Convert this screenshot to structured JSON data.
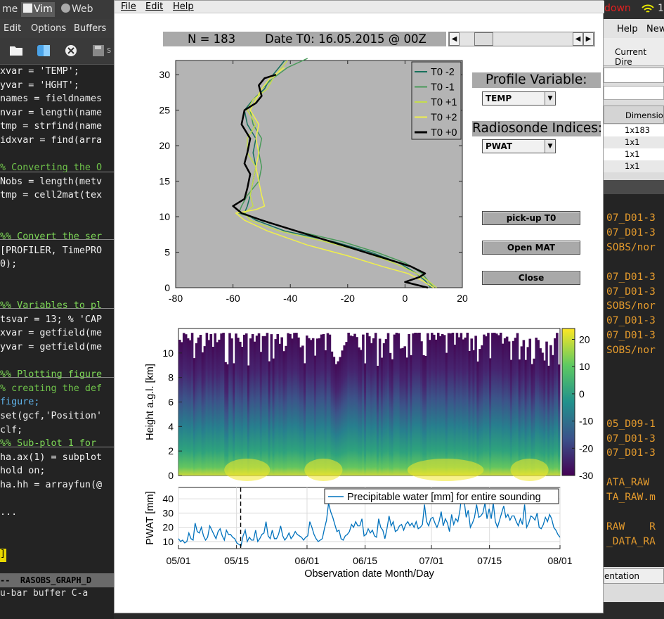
{
  "editor": {
    "tabs": [
      "me",
      "Vim",
      "Web"
    ],
    "menu": [
      "Edit",
      "Options",
      "Buffers"
    ],
    "toolbar_icons": [
      "folder-icon",
      "finder-icon",
      "close-circle-icon",
      "save-icon"
    ],
    "toolbar_trailing": "s",
    "code_lines": [
      {
        "text": "xvar = 'TEMP';",
        "color": "#f0f0f0"
      },
      {
        "text": "yvar = 'HGHT';",
        "color": "#f0f0f0"
      },
      {
        "text": "names = fieldnames",
        "color": "#f0f0f0"
      },
      {
        "text": "nvar = length(name",
        "color": "#f0f0f0"
      },
      {
        "text": "tmp = strfind(name",
        "color": "#f0f0f0"
      },
      {
        "text": "idxvar = find(arra",
        "color": "#f0f0f0"
      },
      {
        "text": "",
        "color": "#f0f0f0"
      },
      {
        "text": "% Converting the O",
        "color": "#6fc24a"
      },
      {
        "text": "Nobs = length(metv",
        "color": "#f0f0f0"
      },
      {
        "text": "tmp = cell2mat(tex",
        "color": "#f0f0f0"
      },
      {
        "text": "",
        "color": "#f0f0f0"
      },
      {
        "text": "",
        "color": "#f0f0f0"
      },
      {
        "text": "%% Convert the ser",
        "color": "#7ed957"
      },
      {
        "text": "[PROFILER, TimePRO",
        "color": "#f0f0f0"
      },
      {
        "text": "0);",
        "color": "#f0f0f0"
      },
      {
        "text": "",
        "color": "#f0f0f0"
      },
      {
        "text": "",
        "color": "#f0f0f0"
      },
      {
        "text": "%% Variables to pl",
        "color": "#7ed957"
      },
      {
        "text": "tsvar = 13; % 'CAP",
        "color": "#f0f0f0"
      },
      {
        "text": "xvar = getfield(me",
        "color": "#f0f0f0"
      },
      {
        "text": "yvar = getfield(me",
        "color": "#f0f0f0"
      },
      {
        "text": "",
        "color": "#f0f0f0"
      },
      {
        "text": "%% Plotting figure",
        "color": "#7ed957"
      },
      {
        "text": "% creating the def",
        "color": "#6fc24a"
      },
      {
        "text": "figure;",
        "color": "#5fb2e8"
      },
      {
        "text": "set(gcf,'Position'",
        "color": "#f0f0f0"
      },
      {
        "text": "clf;",
        "color": "#f0f0f0"
      },
      {
        "text": "%% Sub-plot 1 for",
        "color": "#7ed957"
      },
      {
        "text": "ha.ax(1) = subplot",
        "color": "#f0f0f0"
      },
      {
        "text": "hold on;",
        "color": "#f0f0f0"
      },
      {
        "text": "ha.hh = arrayfun(@",
        "color": "#f0f0f0"
      },
      {
        "text": "",
        "color": "#f0f0f0"
      },
      {
        "text": "...",
        "color": "#f0f0f0"
      },
      {
        "text": "",
        "color": "#f0f0f0"
      },
      {
        "text": "",
        "color": "#f0f0f0"
      },
      {
        "text": "]",
        "color": "#f0f0f0"
      }
    ],
    "status_line": "--  RASOBS_GRAPH_D",
    "message_line": "u-bar buffer C-a"
  },
  "system": {
    "down_label": "down",
    "wifi_trailing": "1"
  },
  "right_app": {
    "menu": [
      "Help",
      "New"
    ],
    "current_dir_label": "Current Dire",
    "table_header": "Dimension",
    "table_rows": [
      "1x183",
      "1x1",
      "1x1",
      "1x1"
    ],
    "code_lines": [
      "07_D01-3",
      "07_D01-3",
      "SOBS/nor",
      "",
      "07_D01-3",
      "07_D01-3",
      "SOBS/nor",
      "07_D01-3",
      "07_D01-3",
      "SOBS/nor",
      "",
      "",
      "",
      "",
      "05_D09-1",
      "07_D01-3",
      "07_D01-3",
      "",
      "ATA_RAW",
      "TA_RAW.m",
      "",
      "RAW    R",
      "_DATA_RA"
    ],
    "tab_button": "entation"
  },
  "figure": {
    "menu": [
      "File",
      "Edit",
      "Help"
    ],
    "header": {
      "n_label": "N = 183",
      "date_label": "Date T0: 16.05.2015 @ 00Z"
    },
    "profile_variable": {
      "label": "Profile Variable:",
      "selected": "TEMP"
    },
    "radiosonde_indices": {
      "label": "Radiosonde Indices:",
      "selected": "PWAT"
    },
    "buttons": {
      "pickup": "pick-up T0",
      "open_mat": "Open MAT",
      "close": "Close"
    }
  },
  "chart_data": [
    {
      "type": "line",
      "title": "",
      "xlabel": "",
      "ylabel": "",
      "xlim": [
        -80,
        20
      ],
      "ylim": [
        0,
        32
      ],
      "xticks": [
        -80,
        -60,
        -40,
        -20,
        0,
        20
      ],
      "yticks": [
        0,
        5,
        10,
        15,
        20,
        25,
        30
      ],
      "background": "#b4b4b4",
      "grid": false,
      "legend": "top-right",
      "series": [
        {
          "name": "T0 -2",
          "color": "#17705c",
          "width": 1.5,
          "points": [
            [
              9,
              0
            ],
            [
              7,
              1
            ],
            [
              4,
              2
            ],
            [
              -2,
              3.5
            ],
            [
              -12,
              5
            ],
            [
              -25,
              6.5
            ],
            [
              -42,
              8
            ],
            [
              -52,
              9.5
            ],
            [
              -56,
              10.5
            ],
            [
              -55,
              11.5
            ],
            [
              -54,
              13
            ],
            [
              -53,
              15
            ],
            [
              -52,
              17
            ],
            [
              -53,
              19
            ],
            [
              -52,
              21
            ],
            [
              -55,
              23
            ],
            [
              -56,
              25
            ],
            [
              -53,
              26.5
            ],
            [
              -49,
              28
            ],
            [
              -47,
              29.5
            ],
            [
              -44,
              31
            ],
            [
              -42,
              32
            ]
          ]
        },
        {
          "name": "T0 -1",
          "color": "#4a9a5a",
          "width": 1.5,
          "points": [
            [
              10,
              0
            ],
            [
              8,
              1
            ],
            [
              6,
              2
            ],
            [
              0,
              3.5
            ],
            [
              -10,
              5
            ],
            [
              -22,
              6.5
            ],
            [
              -38,
              8
            ],
            [
              -50,
              9.5
            ],
            [
              -58,
              10.5
            ],
            [
              -57,
              11.5
            ],
            [
              -55,
              13
            ],
            [
              -51,
              15
            ],
            [
              -50,
              17
            ],
            [
              -51,
              19
            ],
            [
              -50,
              21
            ],
            [
              -53,
              23
            ],
            [
              -54,
              25
            ],
            [
              -52,
              26.5
            ],
            [
              -50,
              28
            ],
            [
              -46,
              29.5
            ],
            [
              -41,
              31
            ],
            [
              -34,
              32.3
            ]
          ]
        },
        {
          "name": "T0 +1",
          "color": "#c4dc4e",
          "width": 1.5,
          "points": [
            [
              11,
              0
            ],
            [
              8,
              1
            ],
            [
              4,
              2
            ],
            [
              -4,
              3.5
            ],
            [
              -14,
              5
            ],
            [
              -28,
              6.5
            ],
            [
              -44,
              8
            ],
            [
              -54,
              9.5
            ],
            [
              -56,
              10.5
            ],
            [
              -53,
              11.5
            ],
            [
              -54,
              13
            ],
            [
              -53,
              15
            ],
            [
              -52,
              17
            ],
            [
              -55,
              19
            ],
            [
              -55,
              21
            ],
            [
              -52,
              23
            ],
            [
              -55,
              25
            ],
            [
              -53,
              26.5
            ],
            [
              -48,
              28
            ],
            [
              -46,
              29.5
            ],
            [
              -43,
              31
            ],
            [
              -41,
              32
            ]
          ]
        },
        {
          "name": "T0 +2",
          "color": "#f0f04a",
          "width": 1.5,
          "points": [
            [
              10,
              0
            ],
            [
              6,
              1
            ],
            [
              1,
              2
            ],
            [
              -8,
              3
            ],
            [
              -20,
              4.5
            ],
            [
              -34,
              6
            ],
            [
              -48,
              8
            ],
            [
              -56,
              9.5
            ],
            [
              -59,
              10.5
            ],
            [
              -52,
              11
            ],
            [
              -49,
              11.5
            ],
            [
              -50,
              13
            ],
            [
              -51,
              15
            ],
            [
              -52,
              17
            ],
            [
              -51,
              19
            ],
            [
              -52,
              21
            ],
            [
              -51,
              23
            ],
            [
              -54,
              25
            ],
            [
              -52,
              26.5
            ],
            [
              -50,
              28
            ],
            [
              -47,
              29.5
            ],
            [
              -42,
              31
            ]
          ]
        },
        {
          "name": "T0 +0",
          "color": "#000000",
          "width": 2.5,
          "points": [
            [
              8,
              0
            ],
            [
              0,
              0.8
            ],
            [
              5,
              1.5
            ],
            [
              7,
              2
            ],
            [
              2,
              3
            ],
            [
              -10,
              4.5
            ],
            [
              -22,
              6
            ],
            [
              -38,
              8
            ],
            [
              -50,
              9.5
            ],
            [
              -57,
              10.5
            ],
            [
              -60,
              11.5
            ],
            [
              -56,
              12.5
            ],
            [
              -55,
              14
            ],
            [
              -54,
              16
            ],
            [
              -56,
              17.5
            ],
            [
              -55,
              19
            ],
            [
              -54,
              21
            ],
            [
              -57,
              23
            ],
            [
              -56,
              25
            ],
            [
              -52,
              26
            ],
            [
              -50,
              27
            ],
            [
              -51,
              28.5
            ],
            [
              -49,
              29.5
            ],
            [
              -45,
              30
            ]
          ]
        }
      ]
    },
    {
      "type": "heatmap",
      "xlabel": "",
      "ylabel": "Height a.g.l. [km]",
      "ylim": [
        0,
        12
      ],
      "yticks": [
        0,
        2,
        4,
        6,
        8,
        10
      ],
      "colorbar": {
        "min": -30,
        "max": 24,
        "ticks": [
          20,
          10,
          0,
          -10,
          -20,
          -30
        ],
        "colors": [
          "#440154",
          "#3b528b",
          "#21918c",
          "#5ec962",
          "#fde725"
        ]
      }
    },
    {
      "type": "line",
      "xlabel": "Observation date Month/Day",
      "ylabel": "PWAT [mm]",
      "x_tick_labels": [
        "05/01",
        "05/15",
        "06/01",
        "06/15",
        "07/01",
        "07/15",
        "08/01"
      ],
      "xlim": [
        0,
        92
      ],
      "ylim": [
        5,
        48
      ],
      "yticks": [
        10,
        20,
        30,
        40
      ],
      "grid": true,
      "marker_day": 15,
      "series": [
        {
          "name": "Precipitable water [mm] for entire sounding",
          "color": "#0072bd",
          "values": [
            12,
            10,
            11,
            9,
            10,
            16,
            12,
            11,
            23,
            17,
            16,
            20,
            14,
            11,
            13,
            21,
            18,
            15,
            12,
            17,
            19,
            14,
            11,
            18,
            15,
            15,
            13,
            12,
            9,
            8,
            7,
            14,
            18,
            10,
            13,
            11,
            11,
            18,
            10,
            12,
            15,
            16,
            24,
            14,
            12,
            18,
            12,
            12,
            15,
            21,
            14,
            11,
            13,
            16,
            12,
            14,
            17,
            15,
            14,
            13,
            11,
            13,
            14,
            24,
            20,
            15,
            12,
            10,
            11,
            12,
            19,
            25,
            37,
            31,
            27,
            22,
            17,
            18,
            12,
            11,
            14,
            15,
            17,
            22,
            20,
            24,
            21,
            21,
            26,
            14,
            15,
            19,
            16,
            18,
            14,
            13,
            26,
            20,
            18,
            12,
            19,
            28,
            21,
            24,
            17,
            18,
            21,
            22,
            18,
            22,
            24,
            21,
            23,
            20,
            24,
            19,
            20,
            22,
            36,
            24,
            21,
            26,
            27,
            23,
            20,
            24,
            31,
            21,
            26,
            23,
            17,
            29,
            22,
            26,
            24,
            32,
            45,
            39,
            27,
            32,
            20,
            23,
            27,
            36,
            27,
            28,
            30,
            37,
            26,
            33,
            26,
            37,
            24,
            20,
            25,
            30,
            35,
            27,
            29,
            25,
            28,
            28,
            24,
            21,
            26,
            22,
            36,
            20,
            23,
            28,
            27,
            25,
            30,
            20,
            19,
            22,
            27,
            24,
            29,
            26,
            20,
            18,
            15,
            13
          ]
        }
      ]
    }
  ]
}
